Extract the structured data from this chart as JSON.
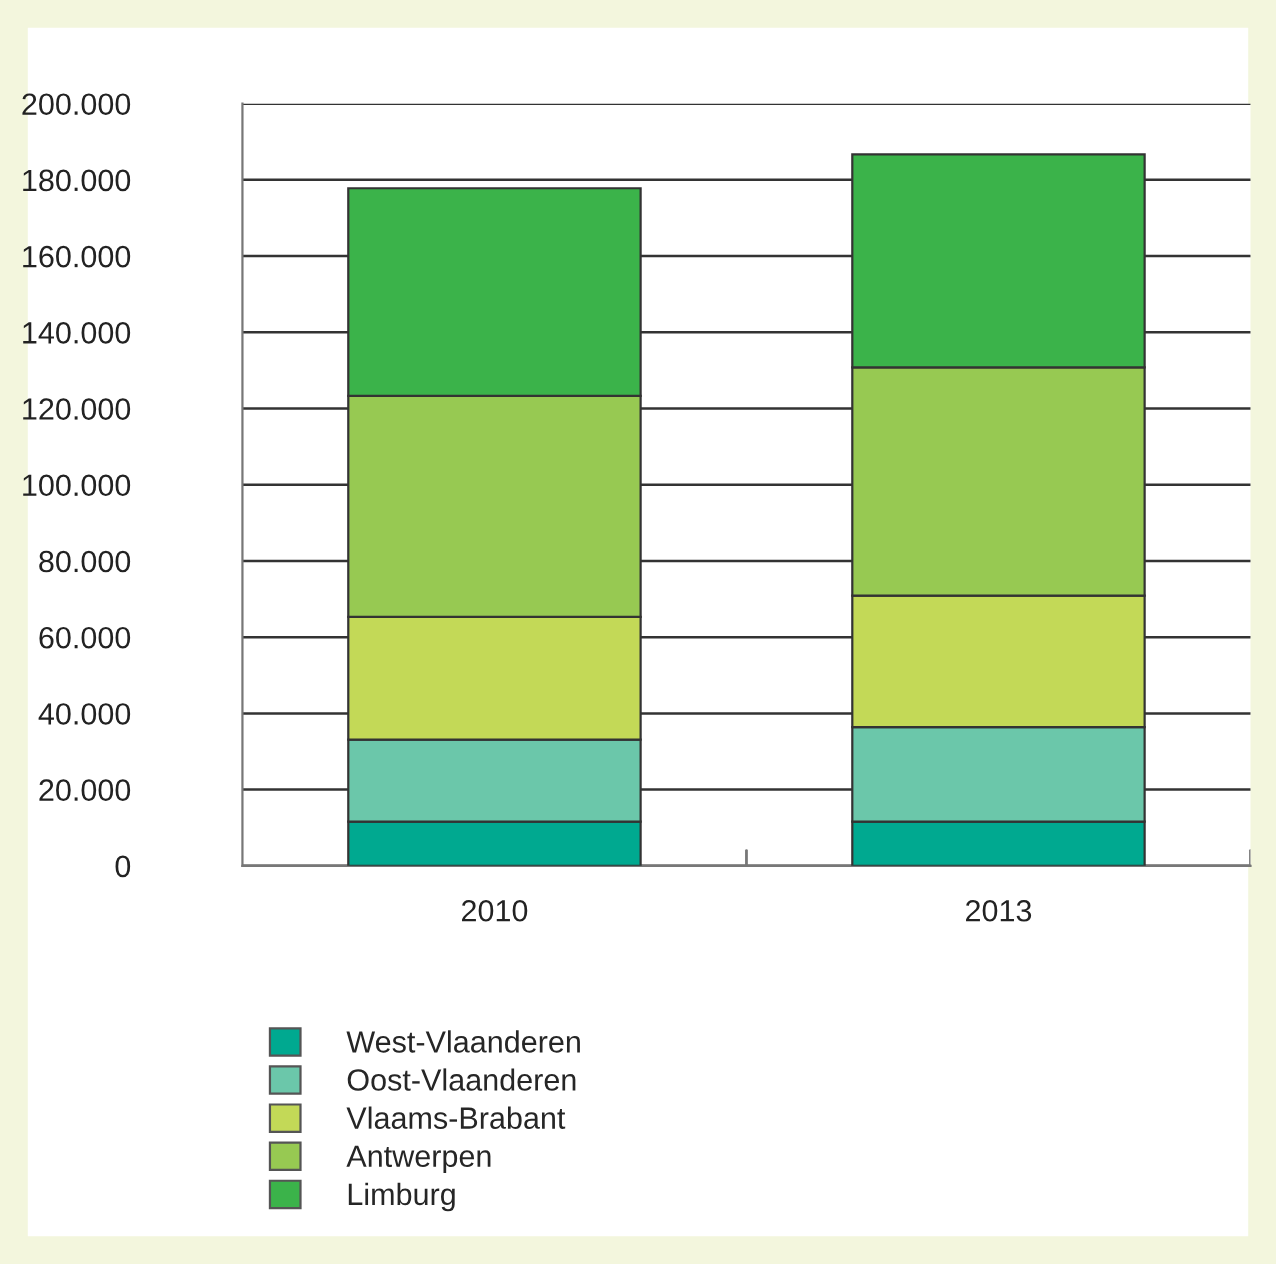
{
  "chart_data": {
    "type": "bar",
    "stacked": true,
    "categories": [
      "2010",
      "2013"
    ],
    "series": [
      {
        "name": "West-Vlaanderen",
        "color": "#00a990",
        "values": [
          11600,
          11600
        ]
      },
      {
        "name": "Oost-Vlaanderen",
        "color": "#6bc7aa",
        "values": [
          21500,
          24800
        ]
      },
      {
        "name": "Vlaams-Brabant",
        "color": "#c3d957",
        "values": [
          32200,
          34500
        ]
      },
      {
        "name": "Antwerpen",
        "color": "#97c952",
        "values": [
          58000,
          59900
        ]
      },
      {
        "name": "Limburg",
        "color": "#3bb34a",
        "values": [
          54500,
          55900
        ]
      }
    ],
    "ylim": [
      0,
      200000
    ],
    "yticks": [
      {
        "value": 0,
        "label": "0"
      },
      {
        "value": 20000,
        "label": "20.000"
      },
      {
        "value": 40000,
        "label": "40.000"
      },
      {
        "value": 60000,
        "label": "60.000"
      },
      {
        "value": 80000,
        "label": "80.000"
      },
      {
        "value": 100000,
        "label": "100.000"
      },
      {
        "value": 120000,
        "label": "120.000"
      },
      {
        "value": 140000,
        "label": "140.000"
      },
      {
        "value": 160000,
        "label": "160.000"
      },
      {
        "value": 180000,
        "label": "180.000"
      },
      {
        "value": 200000,
        "label": "200.000"
      }
    ],
    "grid": "y",
    "legend": "bottom left"
  }
}
